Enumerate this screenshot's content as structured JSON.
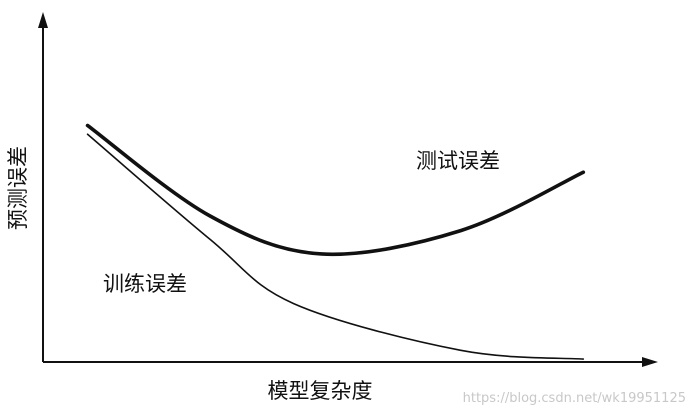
{
  "chart_data": {
    "type": "line",
    "xlabel": "模型复杂度",
    "ylabel": "预测误差",
    "xlim": [
      0,
      1
    ],
    "ylim": [
      0,
      1
    ],
    "ticks": false,
    "grid": false,
    "series": [
      {
        "name": "测试误差",
        "line": "thick",
        "label_position": "right-end",
        "points": [
          {
            "x": 0.08,
            "y": 0.81
          },
          {
            "x": 0.3,
            "y": 0.5
          },
          {
            "x": 0.5,
            "y": 0.37
          },
          {
            "x": 0.75,
            "y": 0.45
          },
          {
            "x": 0.97,
            "y": 0.65
          }
        ]
      },
      {
        "name": "训练误差",
        "line": "thin",
        "label_position": "middle-below",
        "points": [
          {
            "x": 0.08,
            "y": 0.78
          },
          {
            "x": 0.3,
            "y": 0.42
          },
          {
            "x": 0.45,
            "y": 0.2
          },
          {
            "x": 0.75,
            "y": 0.04
          },
          {
            "x": 0.97,
            "y": 0.01
          }
        ]
      }
    ]
  },
  "watermark": "https://blog.csdn.net/wk19951125"
}
